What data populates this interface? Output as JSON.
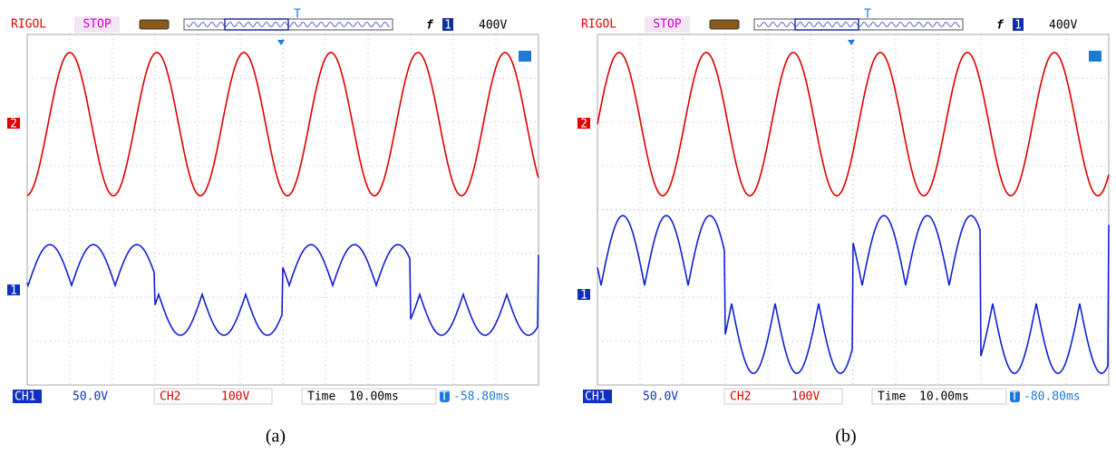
{
  "panels": [
    {
      "brand": "RIGOL",
      "status": "STOP",
      "trigger_marker": "T",
      "edge": "f",
      "trigger_source": "1",
      "trigger_level": "400V",
      "ch2_marker": "2",
      "ch1_marker": "1",
      "ch1_label": "CH1",
      "ch1_scale": "50.0V",
      "ch2_label": "CH2",
      "ch2_scale": "100V",
      "time_label": "Time",
      "time_scale": "10.00ms",
      "offset_marker": "T",
      "offset": "-58.80ms",
      "caption": "(a)"
    },
    {
      "brand": "RIGOL",
      "status": "STOP",
      "trigger_marker": "T",
      "edge": "f",
      "trigger_source": "1",
      "trigger_level": "400V",
      "ch2_marker": "2",
      "ch1_marker": "1",
      "ch1_label": "CH1",
      "ch1_scale": "50.0V",
      "ch2_label": "CH2",
      "ch2_scale": "100V",
      "time_label": "Time",
      "time_scale": "10.00ms",
      "offset_marker": "T",
      "offset": "-80.80ms",
      "caption": "(b)"
    }
  ]
}
